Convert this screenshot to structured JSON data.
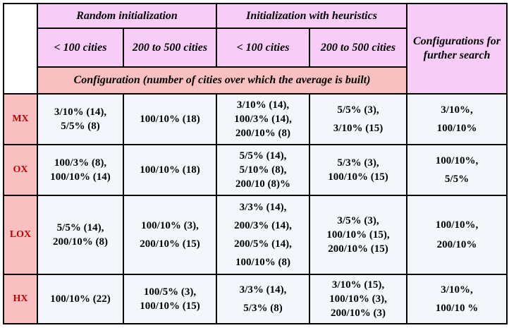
{
  "header": {
    "random_init": "Random initialization",
    "heuristic_init": "Initialization with heuristics",
    "further": "Configurations for further search",
    "lt100": "< 100 cities",
    "range": "200 to 500 cities",
    "lt100_b": "< 100 cities",
    "range_b": "200 to 500 cities",
    "config_row": "Configuration (number of cities over which the average is built)"
  },
  "rows": [
    {
      "label": "MX",
      "rand_small": "3/10% (14),\n5/5% (8)",
      "rand_large": "100/10% (18)",
      "heur_small": "3/10% (14),\n100/3% (14),\n200/10% (8)",
      "heur_large": "5/5% (3),\n3/10% (15)",
      "further": "3/10%,\n100/10%"
    },
    {
      "label": "OX",
      "rand_small": "100/3% (8),\n100/10% (14)",
      "rand_large": "100/10% (18)",
      "heur_small": "5/5% (14),\n5/10% (8),\n200/10 (8)%",
      "heur_large": "5/3% (3),\n100/10% (15)",
      "further": "100/10%,\n5/5%"
    },
    {
      "label": "LOX",
      "rand_small": "5/5% (14),\n200/10% (8)",
      "rand_large": "100/10% (3),\n200/10% (15)",
      "heur_small": "3/3% (14),\n200/3% (14),\n200/5% (14),\n100/10% (8)",
      "heur_large": "3/5% (3),\n100/10% (15),\n200/10% (15)",
      "further": "100/10%,\n200/10%"
    },
    {
      "label": "HX",
      "rand_small": "100/10% (22)",
      "rand_large": "100/5% (3),\n100/10% (15)",
      "heur_small": "3/3% (14),\n5/3% (8)",
      "heur_large": "3/10% (15),\n100/10% (3),\n200/10% (3)",
      "further": "3/10%,\n100/10 %"
    }
  ]
}
